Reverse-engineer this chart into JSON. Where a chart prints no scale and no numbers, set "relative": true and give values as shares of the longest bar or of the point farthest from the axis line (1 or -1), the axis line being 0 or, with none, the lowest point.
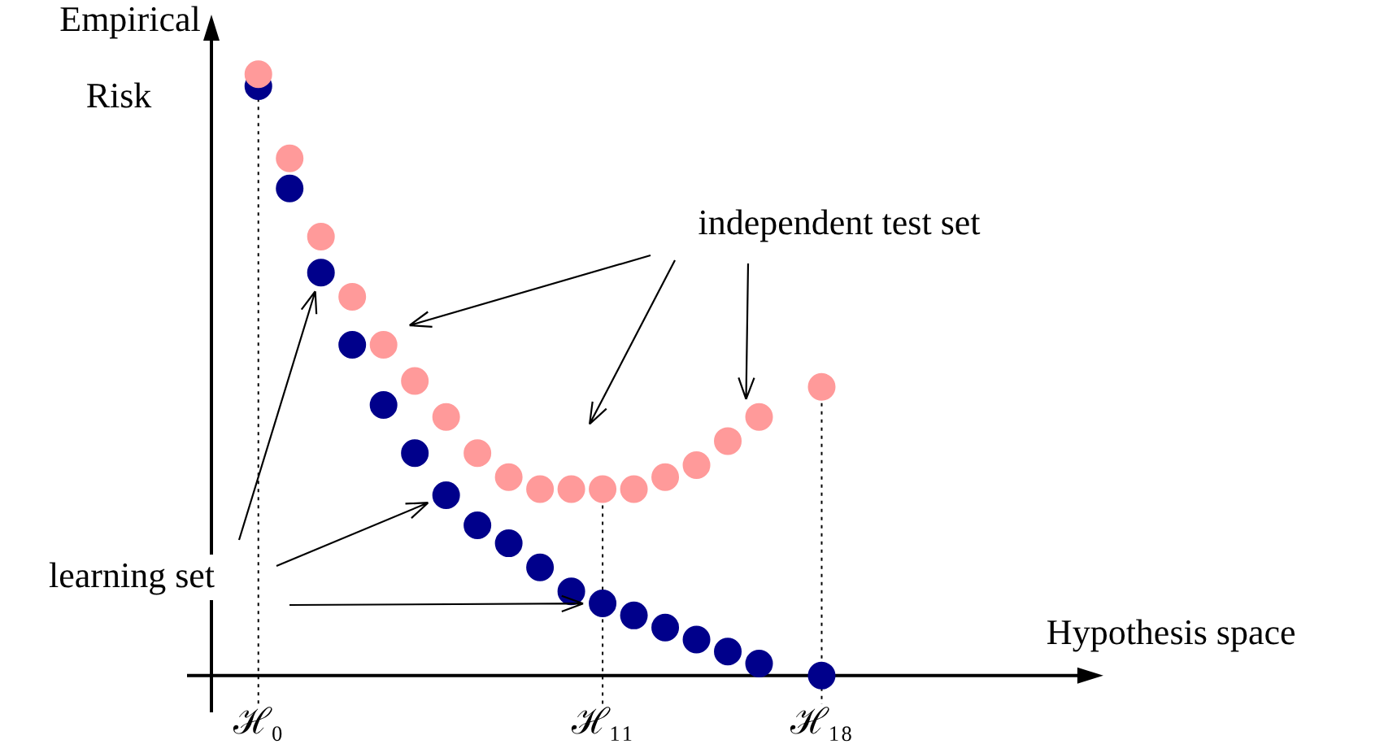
{
  "chart_data": {
    "type": "scatter",
    "relative": true,
    "ylabel": "Empirical Risk",
    "marker": "circle",
    "legend": false,
    "grid": false,
    "ref_lines": [
      {
        "axis": "x",
        "value": "ℋ₀",
        "line_style": "dotted"
      },
      {
        "axis": "x",
        "value": "ℋ₁₁",
        "line_style": "dotted"
      },
      {
        "axis": "x",
        "value": "ℋ₁₈",
        "line_style": "dotted"
      }
    ],
    "categories": [
      "ℋ₀",
      null,
      null,
      null,
      null,
      null,
      null,
      null,
      null,
      null,
      null,
      "ℋ₁₁",
      null,
      null,
      null,
      null,
      null,
      null,
      "ℋ₁₈"
    ],
    "series": [
      {
        "color": "#ff9a9a",
        "values": [
          1,
          0.86,
          0.73,
          0.63,
          0.55,
          0.49,
          0.43,
          0.37,
          0.33,
          0.31,
          0.31,
          0.31,
          0.31,
          0.33,
          0.35,
          0.39,
          0.43,
          null,
          0.48
        ]
      },
      {
        "color": "#00008b",
        "values": [
          0.98,
          0.81,
          0.67,
          0.55,
          0.45,
          0.37,
          0.3,
          0.25,
          0.22,
          0.18,
          0.14,
          0.12,
          0.1,
          0.08,
          0.06,
          0.04,
          0.02,
          null,
          0
        ]
      }
    ],
    "annotations": [
      "independent test set",
      "learning set",
      "Hypothesis space"
    ]
  }
}
